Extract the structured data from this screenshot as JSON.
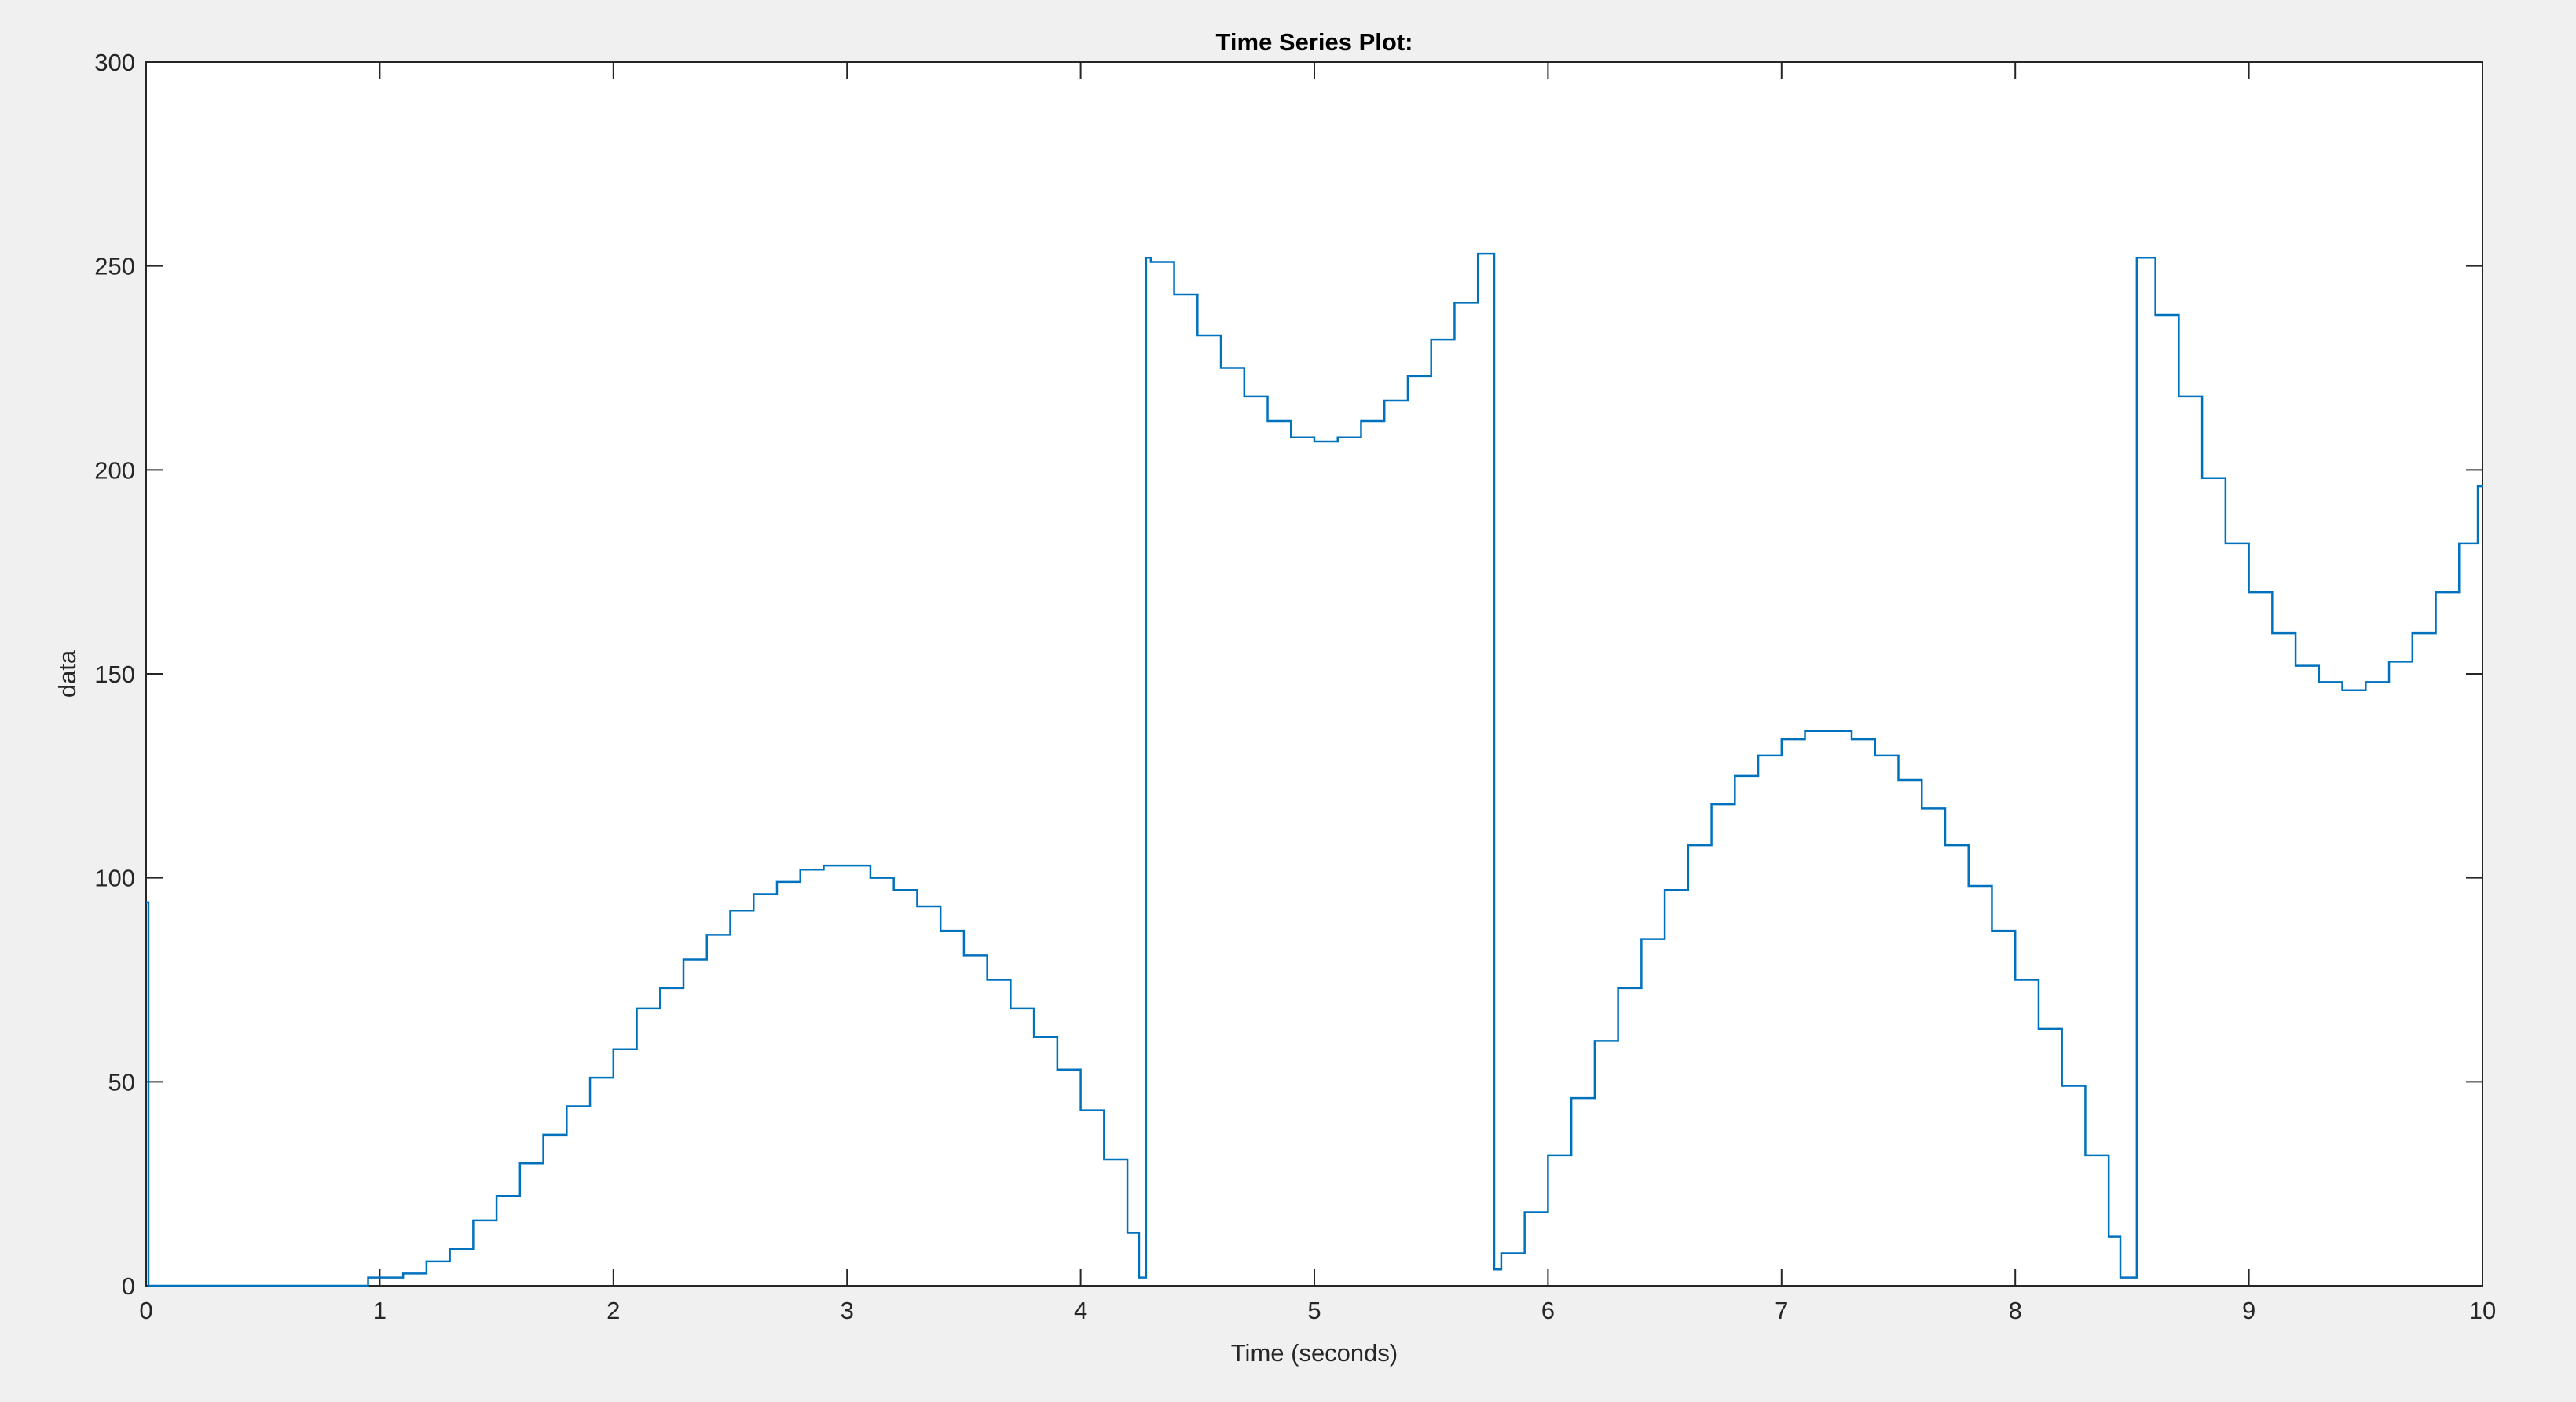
{
  "chart_data": {
    "type": "stairs",
    "title": "Time Series Plot:",
    "x_label": "Time (seconds)",
    "y_label": "data",
    "series": [
      {
        "name": "data",
        "color": "#0072bd",
        "x": [
          0,
          0.01,
          0.95,
          1.0,
          1.1,
          1.2,
          1.3,
          1.4,
          1.5,
          1.6,
          1.7,
          1.8,
          1.9,
          2.0,
          2.1,
          2.2,
          2.3,
          2.4,
          2.5,
          2.6,
          2.7,
          2.8,
          2.9,
          3.0,
          3.1,
          3.2,
          3.3,
          3.4,
          3.5,
          3.6,
          3.7,
          3.8,
          3.9,
          4.0,
          4.1,
          4.2,
          4.25,
          4.28,
          4.3,
          4.4,
          4.5,
          4.6,
          4.7,
          4.8,
          4.9,
          5.0,
          5.1,
          5.2,
          5.3,
          5.4,
          5.5,
          5.6,
          5.7,
          5.77,
          5.8,
          5.9,
          6.0,
          6.1,
          6.2,
          6.3,
          6.4,
          6.5,
          6.6,
          6.7,
          6.8,
          6.9,
          7.0,
          7.1,
          7.2,
          7.3,
          7.4,
          7.5,
          7.6,
          7.7,
          7.8,
          7.9,
          8.0,
          8.1,
          8.2,
          8.3,
          8.4,
          8.45,
          8.52,
          8.6,
          8.7,
          8.8,
          8.9,
          9.0,
          9.1,
          9.2,
          9.3,
          9.4,
          9.5,
          9.6,
          9.7,
          9.8,
          9.9,
          9.98
        ],
        "values": [
          94,
          0,
          2,
          2,
          3,
          6,
          9,
          16,
          22,
          30,
          37,
          44,
          51,
          58,
          68,
          73,
          80,
          86,
          92,
          96,
          99,
          102,
          103,
          103,
          100,
          97,
          93,
          87,
          81,
          75,
          68,
          61,
          53,
          43,
          31,
          13,
          2,
          252,
          251,
          243,
          233,
          225,
          218,
          212,
          208,
          207,
          208,
          212,
          217,
          223,
          232,
          241,
          253,
          4,
          8,
          18,
          32,
          46,
          60,
          73,
          85,
          97,
          108,
          118,
          125,
          130,
          134,
          136,
          136,
          134,
          130,
          124,
          117,
          108,
          98,
          87,
          75,
          63,
          49,
          32,
          12,
          2,
          252,
          238,
          218,
          198,
          182,
          170,
          160,
          152,
          148,
          146,
          148,
          153,
          160,
          170,
          182,
          196
        ]
      }
    ],
    "xlim": [
      0,
      10
    ],
    "xticks": [
      0,
      1,
      2,
      3,
      4,
      5,
      6,
      7,
      8,
      9,
      10
    ],
    "ylim": [
      0,
      300
    ],
    "yticks": [
      0,
      50,
      100,
      150,
      200,
      250,
      300
    ],
    "grid": false
  }
}
